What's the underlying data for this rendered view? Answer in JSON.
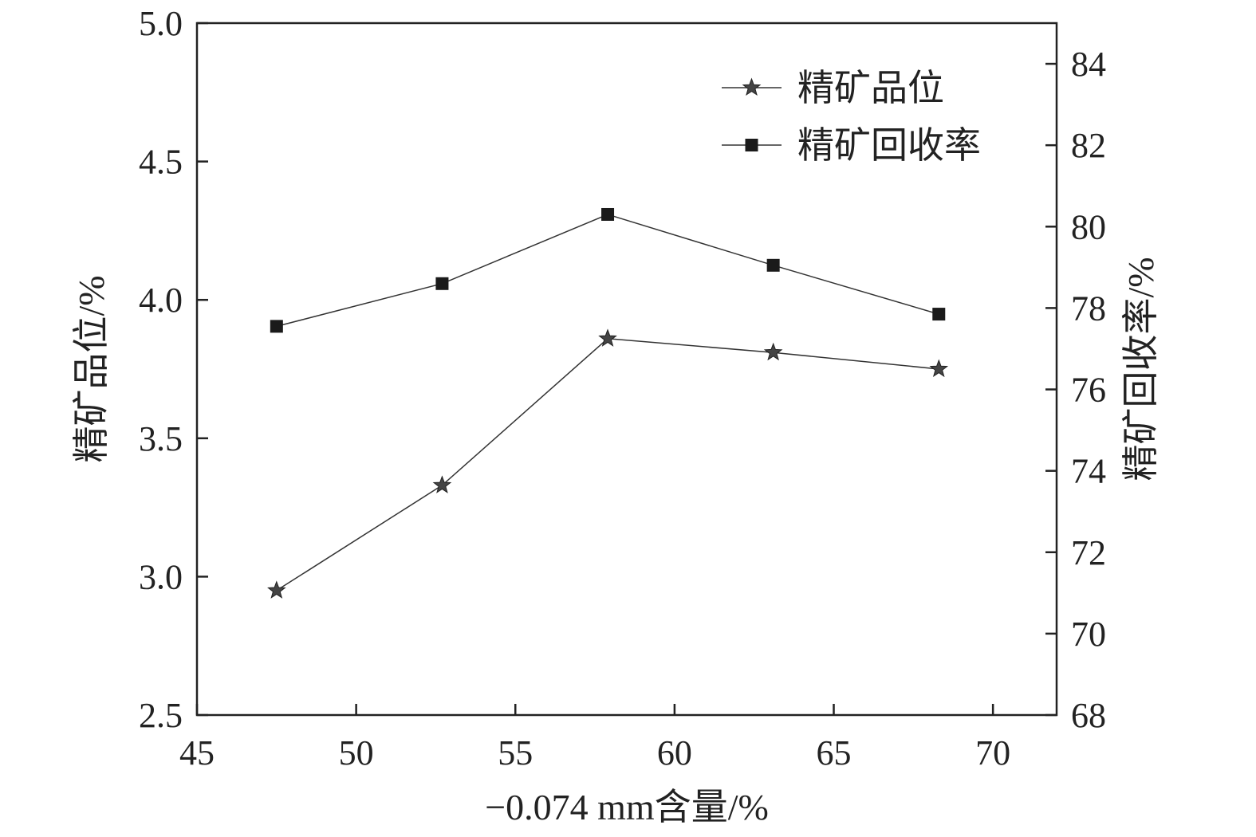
{
  "chart_data": {
    "type": "line",
    "xlabel": "−0.074 mm含量/%",
    "ylabel_left": "精矿品位/%",
    "ylabel_right": "精矿回收率/%",
    "xlim": [
      45,
      72
    ],
    "ylim_left": [
      2.5,
      5.0
    ],
    "ylim_right": [
      68,
      85
    ],
    "x_ticks": [
      "45",
      "50",
      "55",
      "60",
      "65",
      "70"
    ],
    "y_left_ticks": [
      "2.5",
      "3.0",
      "3.5",
      "4.0",
      "4.5",
      "5.0"
    ],
    "y_right_ticks": [
      "68",
      "70",
      "72",
      "74",
      "76",
      "78",
      "80",
      "82",
      "84"
    ],
    "grid": false,
    "legend_position": "top-right",
    "series": [
      {
        "name": "精矿品位",
        "axis": "left",
        "marker": "star",
        "x": [
          47.5,
          52.7,
          57.9,
          63.1,
          68.3
        ],
        "y": [
          2.95,
          3.33,
          3.86,
          3.81,
          3.75
        ]
      },
      {
        "name": "精矿回收率",
        "axis": "right",
        "marker": "square",
        "x": [
          47.5,
          52.7,
          57.9,
          63.1,
          68.3
        ],
        "y": [
          77.55,
          78.6,
          80.3,
          79.05,
          77.85
        ]
      }
    ]
  }
}
